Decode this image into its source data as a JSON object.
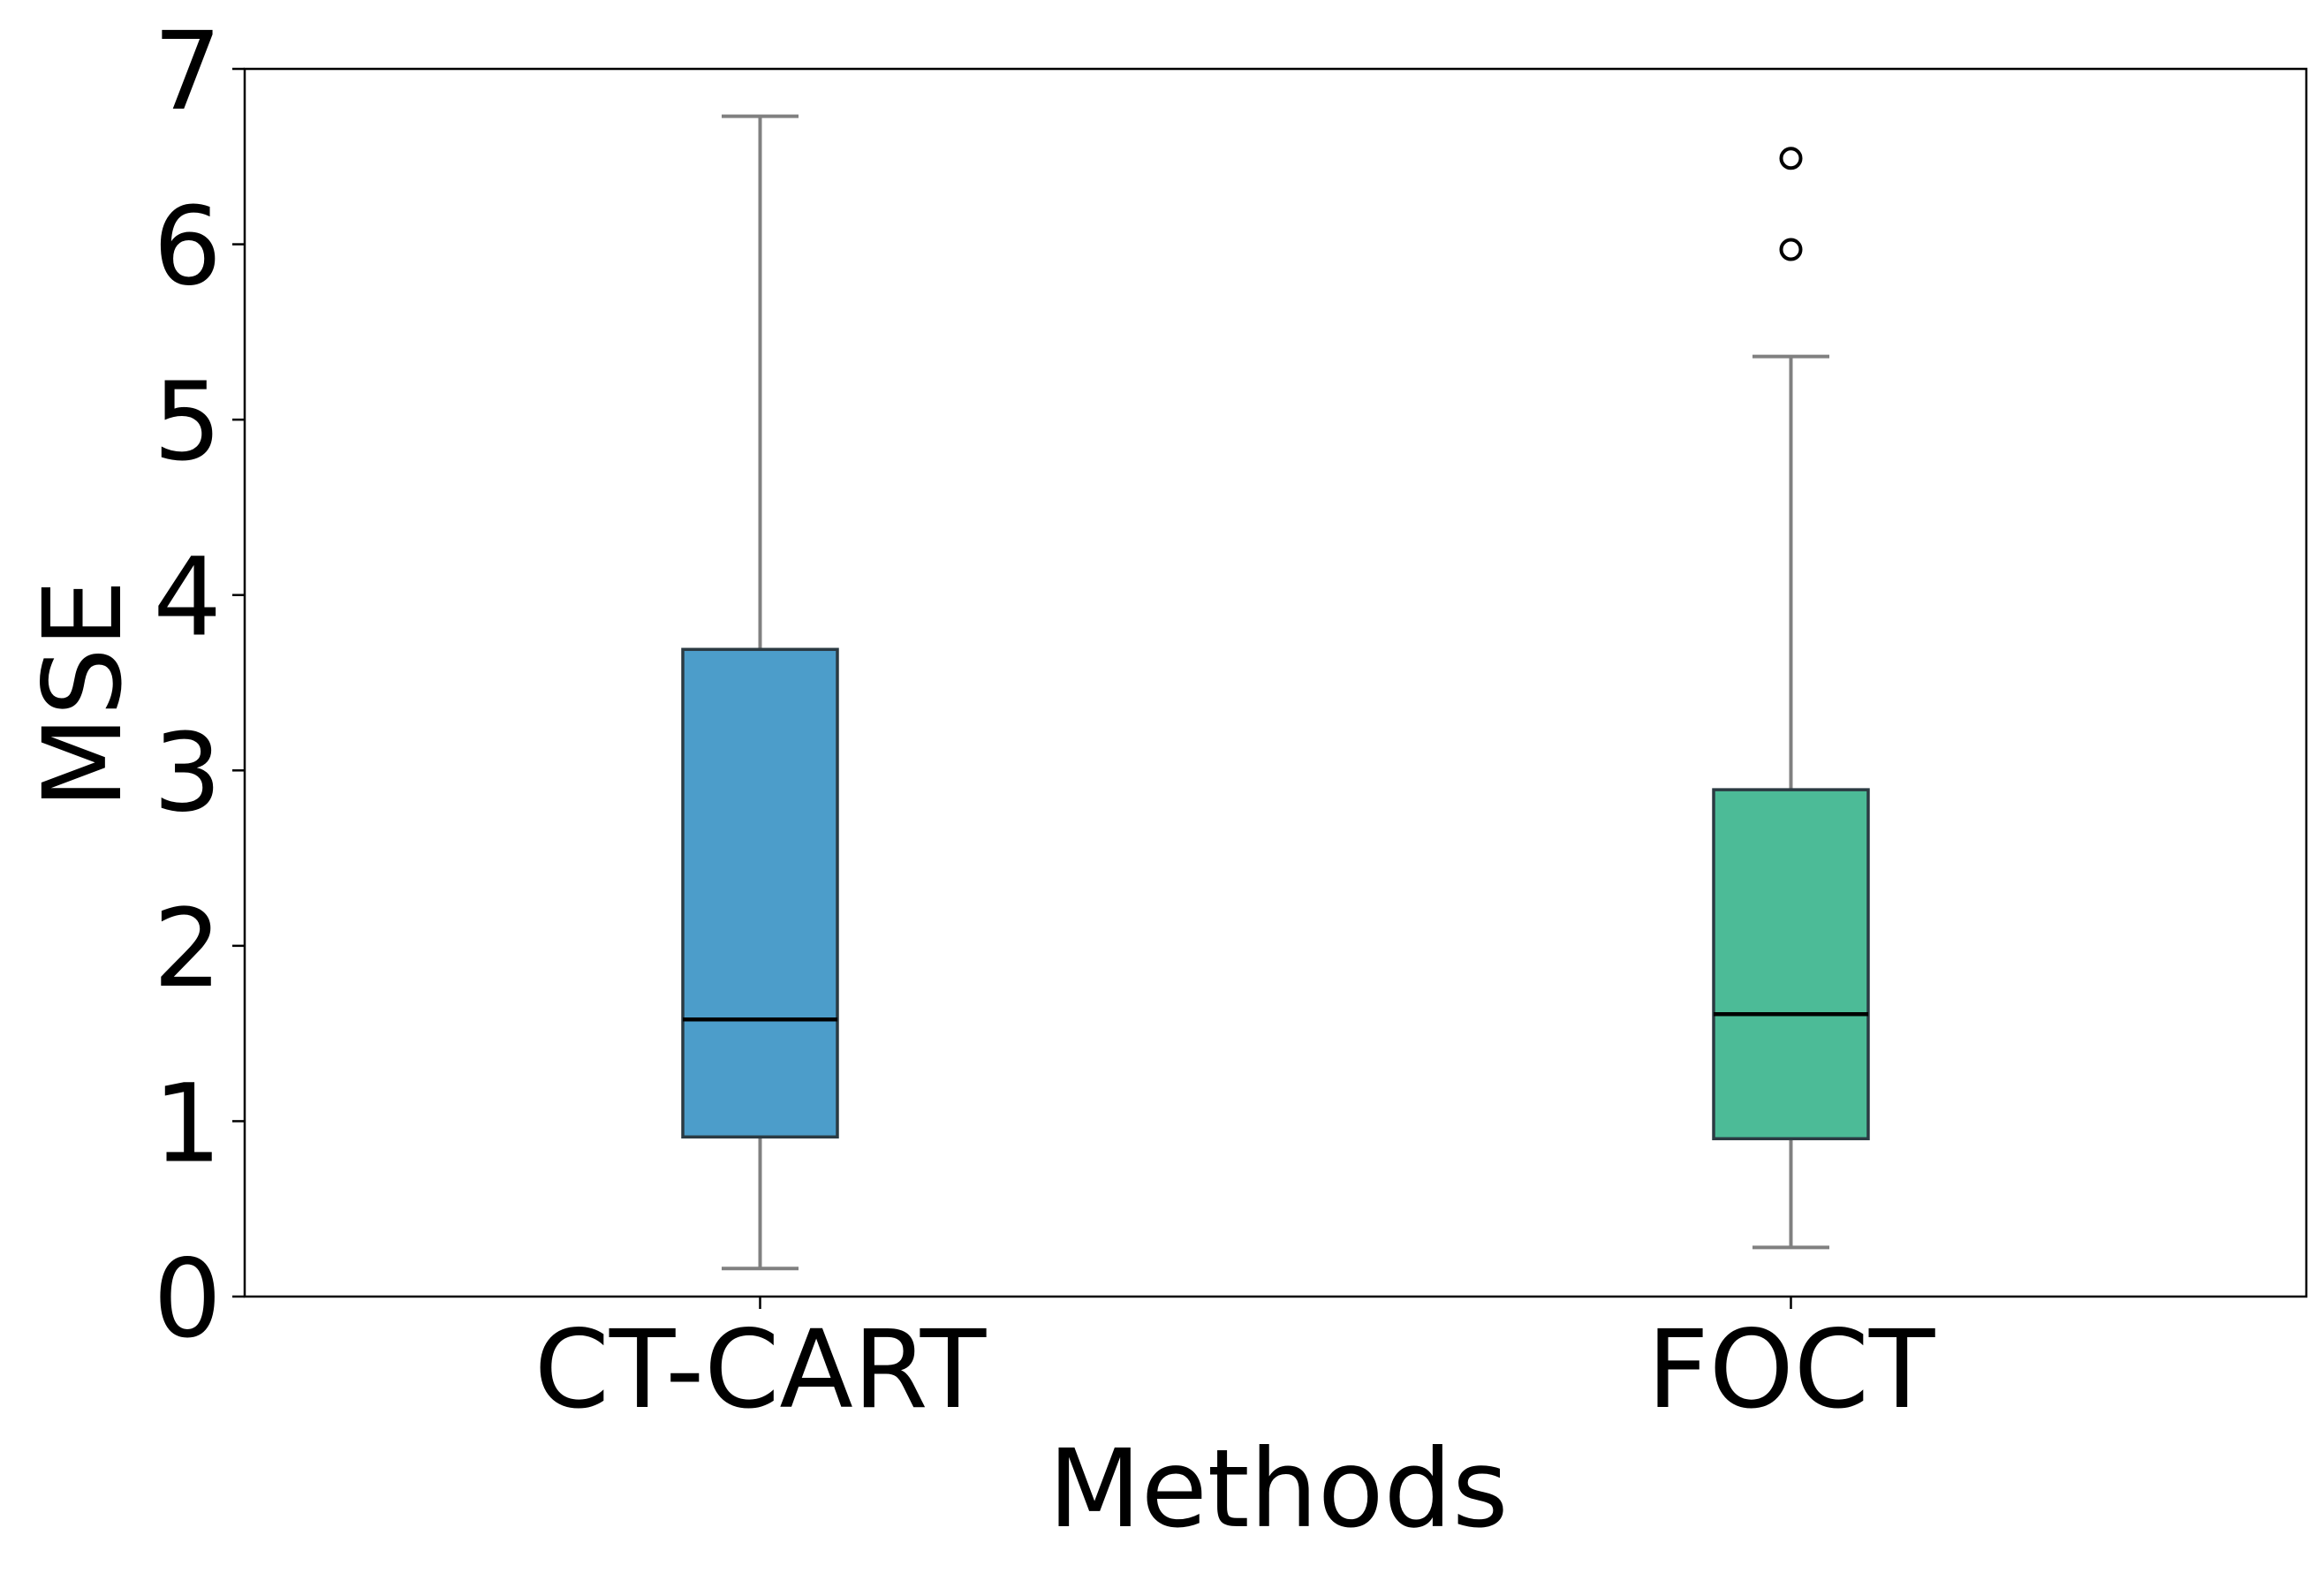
{
  "chart_data": {
    "type": "boxplot",
    "title": "",
    "xlabel": "Methods",
    "ylabel": "MSE",
    "ylim": [
      0,
      7
    ],
    "yticks": [
      "0",
      "1",
      "2",
      "3",
      "4",
      "5",
      "6",
      "7"
    ],
    "grid": false,
    "categories": [
      "CT-CART",
      "FOCT"
    ],
    "boxes": [
      {
        "name": "CT-CART",
        "whisker_low": 0.16,
        "q1": 0.91,
        "median": 1.58,
        "q3": 3.69,
        "whisker_high": 6.73,
        "outliers": [],
        "color": "#4c9dca"
      },
      {
        "name": "FOCT",
        "whisker_low": 0.28,
        "q1": 0.9,
        "median": 1.61,
        "q3": 2.89,
        "whisker_high": 5.36,
        "outliers": [
          5.97,
          6.49
        ],
        "color": "#4cbb97"
      }
    ],
    "whisker_color": "#808080",
    "median_color": "#000000",
    "box_edge_color": "#2b3a42"
  }
}
